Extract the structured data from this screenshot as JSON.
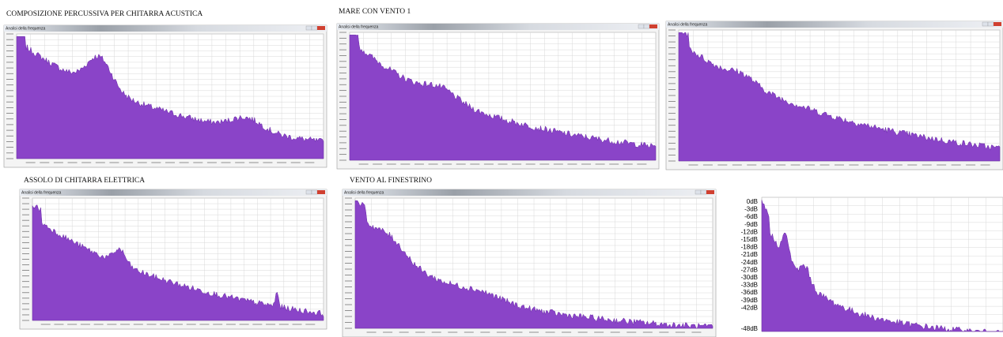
{
  "captions": [
    "COMPOSIZIONE PERCUSSIVA PER CHITARRA ACUSTICA",
    "MARE CON VENTO 1",
    "ASSOLO DI CHITARRA ELETTRICA",
    "VENTO AL FINESTRINO"
  ],
  "windows": [
    {
      "title": "Analisi della frequenza"
    },
    {
      "title": "Analisi della frequenza"
    },
    {
      "title": "Analisi della frequenza"
    },
    {
      "title": "Analisi della frequenza"
    },
    {
      "title": "Analisi della frequenza"
    }
  ],
  "last_panel": {
    "y_labels": [
      "0dB",
      "-3dB",
      "-6dB",
      "-9dB",
      "-12dB",
      "-15dB",
      "-18dB",
      "-21dB",
      "-24dB",
      "-27dB",
      "-30dB",
      "-33dB",
      "-36dB",
      "-39dB",
      "-42dB",
      "-48dB"
    ]
  }
}
